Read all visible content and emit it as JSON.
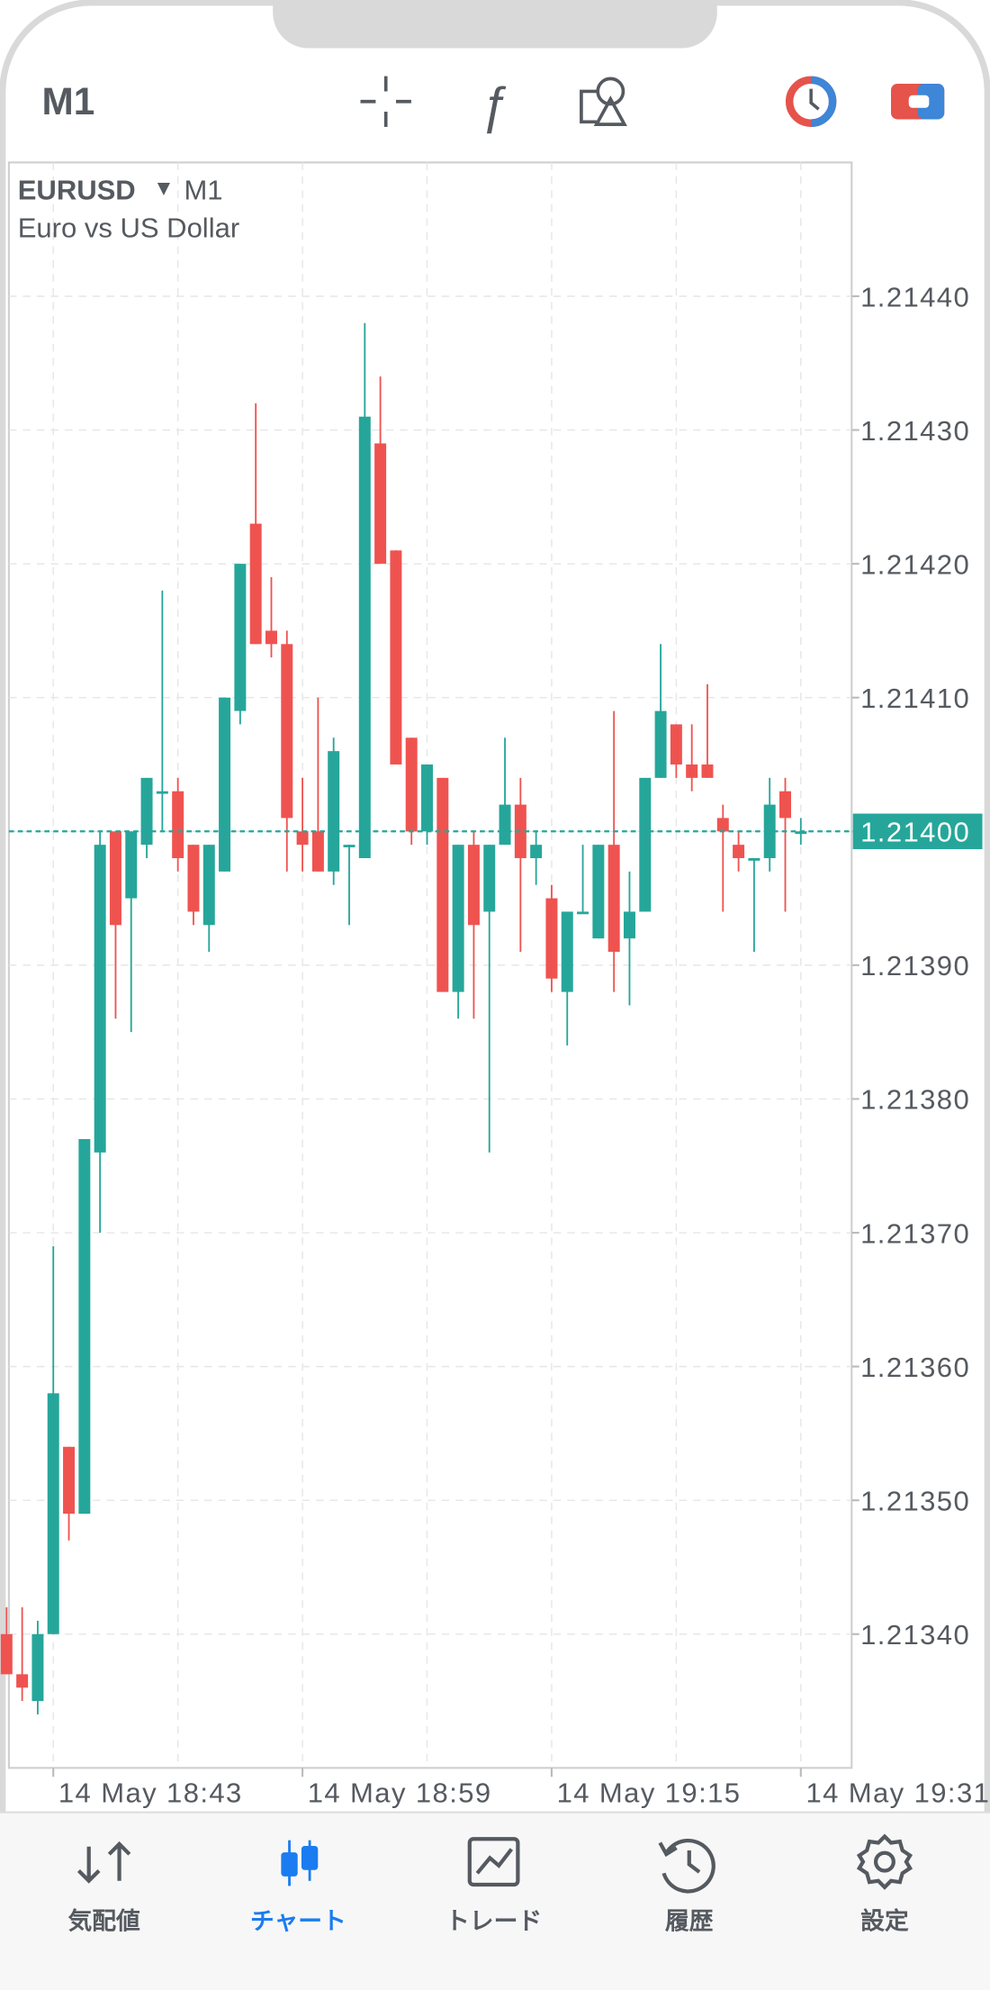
{
  "toolbar": {
    "timeframe": "M1"
  },
  "chart_data": {
    "type": "candlestick",
    "symbol": "EURUSD",
    "timeframe": "M1",
    "description": "Euro vs US Dollar",
    "up_color": "#26a69a",
    "down_color": "#ef5350",
    "grid": true,
    "categories": [
      null,
      null,
      null,
      "14 May 18:43",
      null,
      null,
      null,
      null,
      null,
      null,
      null,
      null,
      null,
      null,
      null,
      null,
      null,
      null,
      null,
      "14 May 18:59",
      null,
      null,
      null,
      null,
      null,
      null,
      null,
      null,
      null,
      null,
      null,
      null,
      null,
      null,
      null,
      "14 May 19:15",
      null,
      null,
      null,
      null,
      null,
      null,
      null,
      null,
      null,
      null,
      null,
      null,
      null,
      null,
      null,
      "14 May 19:31"
    ],
    "open": [
      1.2134,
      1.21337,
      1.21335,
      1.2134,
      1.21354,
      1.21349,
      1.21376,
      1.214,
      1.21395,
      1.21399,
      1.21403,
      1.21403,
      1.21399,
      1.21393,
      1.21397,
      1.21409,
      1.21423,
      1.21415,
      1.21414,
      1.214,
      1.214,
      1.21397,
      1.21399,
      1.21398,
      1.21429,
      1.21421,
      1.21407,
      1.214,
      1.21404,
      1.21388,
      1.21399,
      1.21394,
      1.21399,
      1.21402,
      1.21398,
      1.21395,
      1.21388,
      1.21394,
      1.21392,
      1.21399,
      1.21392,
      1.21394,
      1.21404,
      1.21408,
      1.21405,
      1.21405,
      1.21401,
      1.21399,
      1.21398,
      1.21398,
      1.21403,
      1.214
    ],
    "high": [
      1.21342,
      1.21342,
      1.21341,
      1.21369,
      1.21354,
      1.21377,
      1.214,
      1.214,
      1.214,
      1.21404,
      1.21418,
      1.21404,
      1.21399,
      1.21399,
      1.2141,
      1.2142,
      1.21432,
      1.21419,
      1.21415,
      1.21404,
      1.2141,
      1.21407,
      1.21399,
      1.21438,
      1.21434,
      1.21421,
      1.21407,
      1.21405,
      1.21404,
      1.21399,
      1.214,
      1.21399,
      1.21407,
      1.21404,
      1.214,
      1.21396,
      1.21394,
      1.21399,
      1.21399,
      1.21409,
      1.21397,
      1.21404,
      1.21414,
      1.21408,
      1.21408,
      1.21411,
      1.21402,
      1.214,
      1.21398,
      1.21404,
      1.21404,
      1.21401
    ],
    "low": [
      1.21337,
      1.21335,
      1.21334,
      1.2134,
      1.21347,
      1.21349,
      1.2137,
      1.21386,
      1.21385,
      1.21398,
      1.214,
      1.21397,
      1.21393,
      1.21391,
      1.21397,
      1.21408,
      1.21414,
      1.21413,
      1.21397,
      1.21397,
      1.21397,
      1.21396,
      1.21393,
      1.21398,
      1.2142,
      1.21405,
      1.21399,
      1.21399,
      1.21388,
      1.21386,
      1.21386,
      1.21376,
      1.21399,
      1.21391,
      1.21396,
      1.21388,
      1.21384,
      1.21394,
      1.21392,
      1.21388,
      1.21387,
      1.21394,
      1.21404,
      1.21404,
      1.21403,
      1.21404,
      1.21394,
      1.21397,
      1.21391,
      1.21397,
      1.21394,
      1.21399
    ],
    "close": [
      1.21337,
      1.21336,
      1.2134,
      1.21358,
      1.21349,
      1.21377,
      1.21399,
      1.21393,
      1.214,
      1.21404,
      1.21403,
      1.21398,
      1.21394,
      1.21399,
      1.2141,
      1.2142,
      1.21414,
      1.21414,
      1.21401,
      1.21399,
      1.21397,
      1.21406,
      1.21399,
      1.21431,
      1.2142,
      1.21405,
      1.214,
      1.21405,
      1.21388,
      1.21399,
      1.21393,
      1.21399,
      1.21402,
      1.21398,
      1.21399,
      1.21389,
      1.21394,
      1.21394,
      1.21399,
      1.21391,
      1.21394,
      1.21404,
      1.21409,
      1.21405,
      1.21404,
      1.21404,
      1.214,
      1.21398,
      1.21398,
      1.21402,
      1.21401,
      1.214
    ],
    "ylim": [
      1.2133,
      1.2145
    ],
    "yticks": [
      {
        "value": 1.2134,
        "label": "1.21340"
      },
      {
        "value": 1.2135,
        "label": "1.21350"
      },
      {
        "value": 1.2136,
        "label": "1.21360"
      },
      {
        "value": 1.2137,
        "label": "1.21370"
      },
      {
        "value": 1.2138,
        "label": "1.21380"
      },
      {
        "value": 1.2139,
        "label": "1.21390"
      },
      {
        "value": 1.214,
        "label": "1.21400"
      },
      {
        "value": 1.2141,
        "label": "1.21410"
      },
      {
        "value": 1.2142,
        "label": "1.21420"
      },
      {
        "value": 1.2143,
        "label": "1.21430"
      },
      {
        "value": 1.2144,
        "label": "1.21440"
      }
    ],
    "last_price": {
      "value": 1.214,
      "label": "1.21400"
    }
  },
  "tabs": [
    "気配値",
    "チャート",
    "トレード",
    "履歴",
    "設定"
  ],
  "active_tab": 1
}
